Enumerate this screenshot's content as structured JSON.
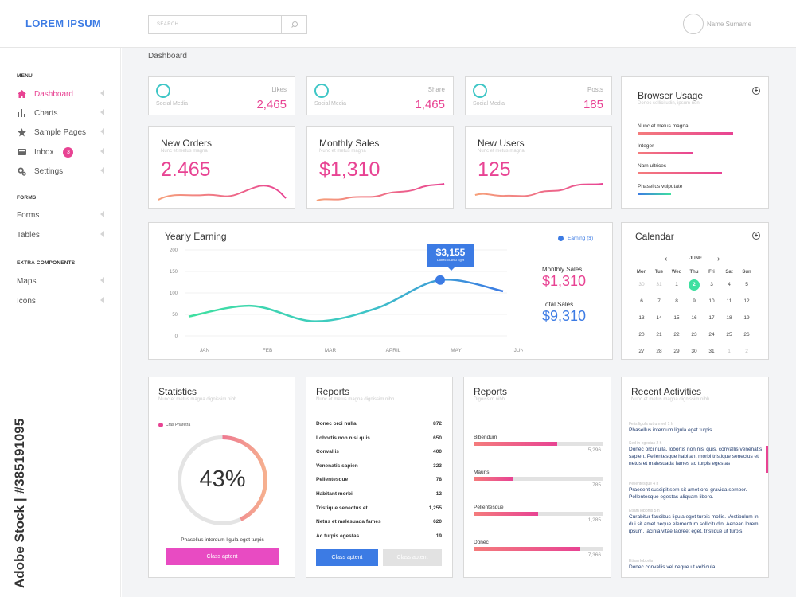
{
  "app": {
    "logo": "LOREM IPSUM"
  },
  "search": {
    "placeholder": "SEARCH"
  },
  "user": {
    "name": "Name Surname"
  },
  "breadcrumb": "Dashboard",
  "sidebar": {
    "sections": [
      "MENU",
      "FORMS",
      "EXTRA COMPONENTS"
    ],
    "menu": [
      {
        "label": "Dashboard",
        "icon": "home-icon",
        "active": true
      },
      {
        "label": "Charts",
        "icon": "bar-chart-icon"
      },
      {
        "label": "Sample Pages",
        "icon": "star-icon"
      },
      {
        "label": "Inbox",
        "icon": "inbox-icon",
        "badge": "3"
      },
      {
        "label": "Settings",
        "icon": "gear-icon"
      }
    ],
    "forms": [
      {
        "label": "Forms"
      },
      {
        "label": "Tables"
      }
    ],
    "extra": [
      {
        "label": "Maps"
      },
      {
        "label": "Icons"
      }
    ]
  },
  "colors": {
    "accent_pink": "#e84393",
    "accent_blue": "#3c7be4",
    "accent_teal": "#3ec6c6"
  },
  "social": [
    {
      "name": "Likes",
      "label": "Social Media",
      "value": "2,465"
    },
    {
      "name": "Share",
      "label": "Social Media",
      "value": "1,465"
    },
    {
      "name": "Posts",
      "label": "Social Media",
      "value": "185"
    }
  ],
  "metrics": [
    {
      "title": "New Orders",
      "subtitle": "Nunc et metus magna",
      "value": "2.465"
    },
    {
      "title": "Monthly Sales",
      "subtitle": "Nunc et metus magna",
      "value": "$1,310"
    },
    {
      "title": "New Users",
      "subtitle": "Nunc et metus magna",
      "value": "125"
    }
  ],
  "browser_usage": {
    "title": "Browser Usage",
    "subtitle": "Donec sollicitudin, ipsum non",
    "items": [
      {
        "label": "Nunc et metus magna",
        "level": 0.86
      },
      {
        "label": "Integer",
        "level": 0.5
      },
      {
        "label": "Nam ultrices",
        "level": 0.76
      },
      {
        "label": "Phasellus vulputate",
        "level": 0.3
      }
    ]
  },
  "yearly": {
    "title": "Yearly Earning",
    "legend": "Earning ($)",
    "tooltip_value": "$3,155",
    "tooltip_sub": "Donec id Arcu Eget",
    "monthly_label": "Monthly Sales",
    "monthly_value": "$1,310",
    "total_label": "Total Sales",
    "total_value": "$9,310"
  },
  "chart_data": {
    "type": "line",
    "x": [
      "JAN",
      "FEB",
      "MAR",
      "APRIL",
      "MAY",
      "JUN"
    ],
    "y_ticks": [
      0,
      50,
      100,
      150,
      200
    ],
    "ylim": [
      0,
      200
    ],
    "grid": true,
    "legend_position": "top-right",
    "series": [
      {
        "name": "Earning ($)",
        "values": [
          45,
          70,
          34,
          65,
          130,
          104
        ]
      }
    ],
    "highlight": {
      "x": "MAY",
      "value": 130,
      "label": "$3,155"
    }
  },
  "calendar": {
    "title": "Calendar",
    "month": "JUNE",
    "weekdays": [
      "Mon",
      "Tue",
      "Wed",
      "Thu",
      "Fri",
      "Sat",
      "Sun"
    ],
    "days": [
      [
        "30",
        "31",
        "1",
        "2",
        "3",
        "4",
        "5"
      ],
      [
        "6",
        "7",
        "8",
        "9",
        "10",
        "11",
        "12"
      ],
      [
        "13",
        "14",
        "15",
        "16",
        "17",
        "18",
        "19"
      ],
      [
        "20",
        "21",
        "22",
        "23",
        "24",
        "25",
        "26"
      ],
      [
        "27",
        "28",
        "29",
        "30",
        "31",
        "1",
        "2"
      ]
    ],
    "selected": "2"
  },
  "statistics": {
    "title": "Statistics",
    "subtitle": "Nunc et metus magna dignissim nibh",
    "legend": "Cras Pharetra",
    "percent": 43,
    "percent_label": "43%",
    "caption": "Phasellus interdum ligula eget turpis",
    "button": "Class aptent"
  },
  "reports1": {
    "title": "Reports",
    "subtitle": "Nunc et metus magna dignissim nibh",
    "rows": [
      {
        "label": "Donec orci nulla",
        "value": "872"
      },
      {
        "label": "Lobortis non nisi quis",
        "value": "650"
      },
      {
        "label": "Convallis",
        "value": "400"
      },
      {
        "label": "Venenatis sapien",
        "value": "323"
      },
      {
        "label": "Pellentesque",
        "value": "78"
      },
      {
        "label": "Habitant morbi",
        "value": "12"
      },
      {
        "label": "Tristique senectus et",
        "value": "1,255"
      },
      {
        "label": "Netus et malesuada fames",
        "value": "620"
      },
      {
        "label": "Ac turpis egestas",
        "value": "19"
      }
    ],
    "button_primary": "Class aptent",
    "button_secondary": "Class aptent"
  },
  "reports2": {
    "title": "Reports",
    "subtitle": "Dignissim nibh",
    "bars": [
      {
        "label": "Bibendum",
        "value": "5,296",
        "level": 0.65
      },
      {
        "label": "Mauris",
        "value": "785",
        "level": 0.3
      },
      {
        "label": "Pellentesque",
        "value": "1,285",
        "level": 0.5
      },
      {
        "label": "Donec",
        "value": "7,366",
        "level": 0.83
      }
    ]
  },
  "activities": {
    "title": "Recent Activities",
    "subtitle": "Nunc et metus magna dignissim nibh",
    "items": [
      {
        "time": "Felis ligula rutrum vel 1 h",
        "text": "Phasellus interdum ligula eget turpis"
      },
      {
        "time": "Sed in egestas 2 h",
        "text": "Donec orci nulla, lobortis non nisi quis, convallis venenatis sapien. Pellentesque habitant morbi tristique senectus et netus et malesuada fames ac turpis egestas"
      },
      {
        "time": "Pellentesque 4 h",
        "text": "Praesent suscipit sem sit amet orci gravida semper. Pellentesque egestas aliquam libero."
      },
      {
        "time": "Etiam lobortis 5 h",
        "text": "Curabitur faucibus ligula eget turpis mollis. Vestibulum in dui sit amet neque elementum sollicitudin. Aenean lorem ipsum, lacinia vitae laoreet eget, tristique ut turpis."
      },
      {
        "time": "Etiam lobortis",
        "text": "Donec convallis vel neque ut vehicula."
      }
    ]
  },
  "watermark": {
    "brand": "Adobe Stock",
    "id": "#385191095"
  }
}
